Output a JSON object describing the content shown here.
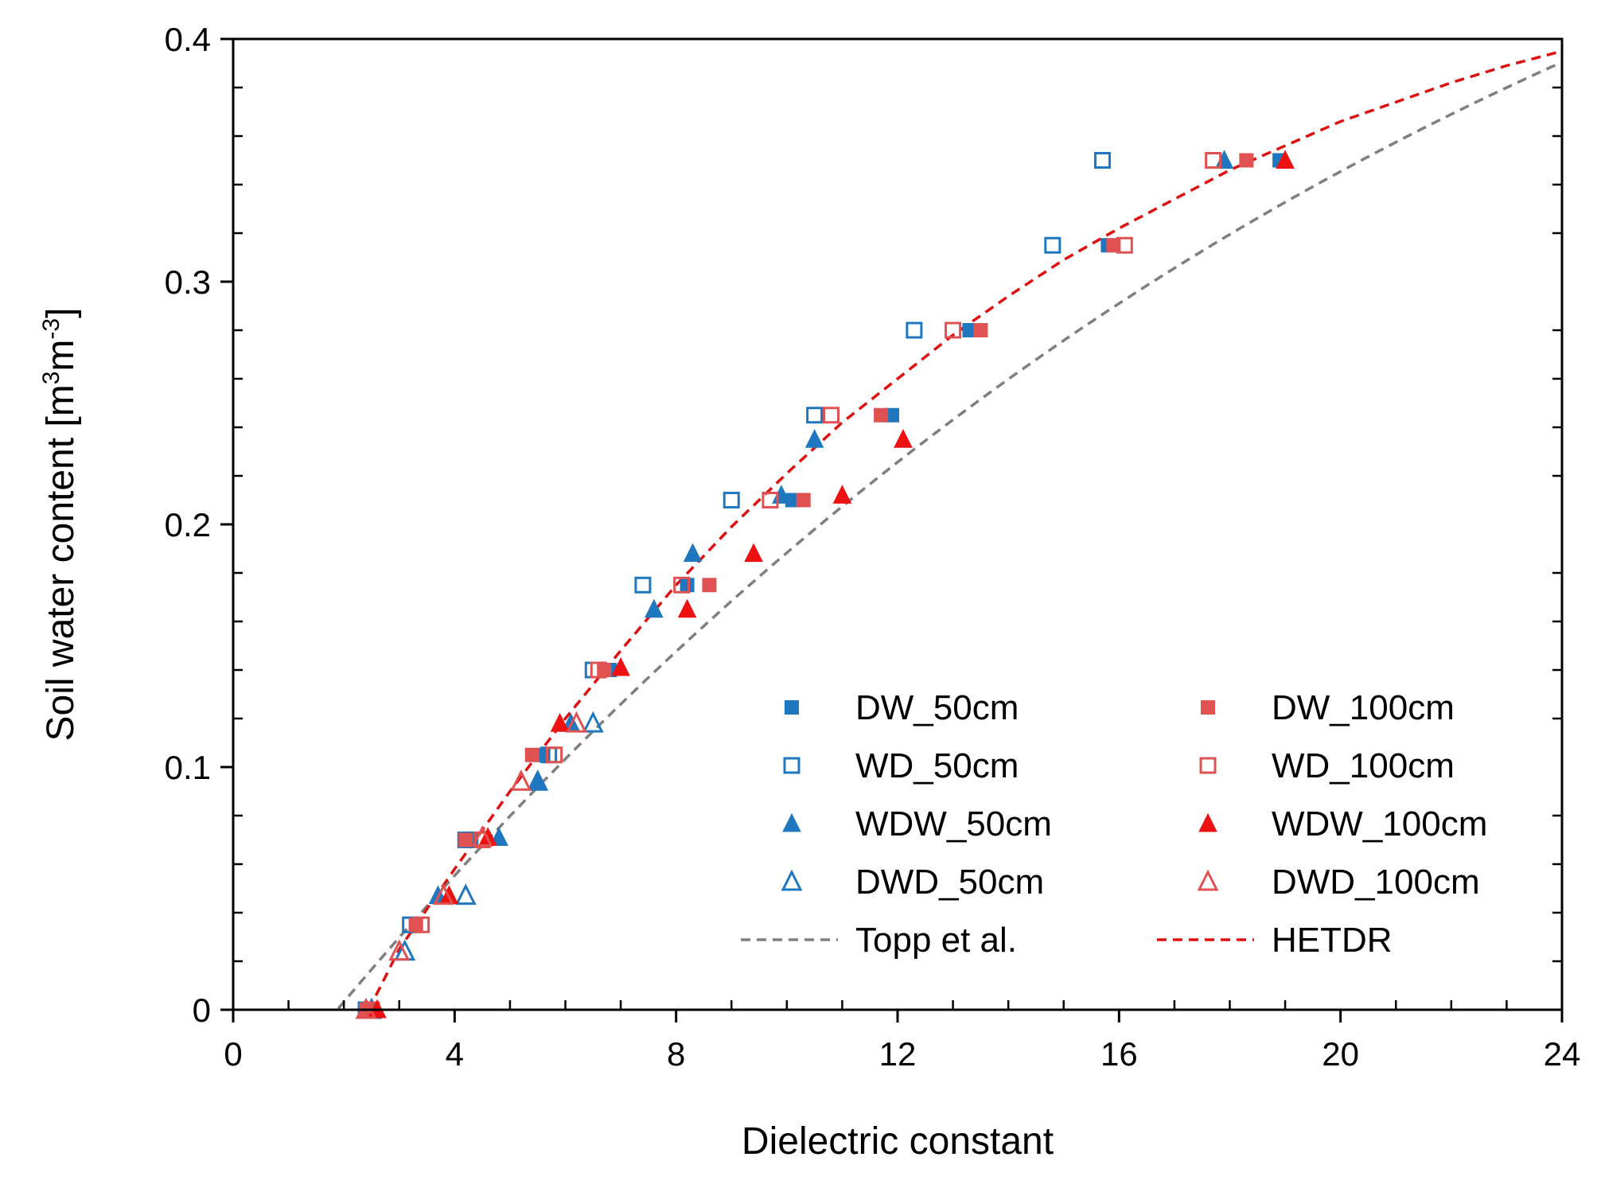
{
  "chart_data": {
    "type": "scatter",
    "title": "",
    "xlabel": "Dielectric constant",
    "ylabel_main": "Soil water content [m",
    "ylabel_sup1": "3",
    "ylabel_mid": "m",
    "ylabel_sup2": "-3",
    "ylabel_end": "]",
    "xlim": [
      0,
      24
    ],
    "ylim": [
      0,
      0.4
    ],
    "xticks": [
      0,
      4,
      8,
      12,
      16,
      20,
      24
    ],
    "xtick_labels": [
      "0",
      "4",
      "8",
      "12",
      "16",
      "20",
      "24"
    ],
    "yticks": [
      0,
      0.1,
      0.2,
      0.3,
      0.4
    ],
    "ytick_labels": [
      "0",
      "0.1",
      "0.2",
      "0.3",
      "0.4"
    ],
    "grid": false,
    "legend_position": "bottom-right",
    "colors": {
      "blue": "#1f77c0",
      "red_light": "#e05252",
      "red": "#ee1111",
      "gray": "#7f7f7f",
      "dark_red": "#dd1111"
    },
    "series": [
      {
        "name": "DW_50cm",
        "marker": "square",
        "filled": true,
        "color": "#1f77c0",
        "points": [
          [
            2.5,
            0.0
          ],
          [
            3.3,
            0.035
          ],
          [
            4.3,
            0.07
          ],
          [
            5.6,
            0.105
          ],
          [
            6.8,
            0.14
          ],
          [
            8.2,
            0.175
          ],
          [
            10.1,
            0.21
          ],
          [
            11.9,
            0.245
          ],
          [
            13.3,
            0.28
          ],
          [
            15.8,
            0.315
          ],
          [
            18.9,
            0.35
          ]
        ]
      },
      {
        "name": "WD_50cm",
        "marker": "square",
        "filled": false,
        "color": "#1f77c0",
        "points": [
          [
            2.4,
            0.0
          ],
          [
            3.2,
            0.035
          ],
          [
            4.2,
            0.07
          ],
          [
            5.7,
            0.105
          ],
          [
            6.5,
            0.14
          ],
          [
            7.4,
            0.175
          ],
          [
            9.0,
            0.21
          ],
          [
            10.5,
            0.245
          ],
          [
            12.3,
            0.28
          ],
          [
            14.8,
            0.315
          ],
          [
            15.7,
            0.35
          ]
        ]
      },
      {
        "name": "WDW_50cm",
        "marker": "triangle",
        "filled": true,
        "color": "#1f77c0",
        "points": [
          [
            2.6,
            0.0
          ],
          [
            3.7,
            0.047
          ],
          [
            4.8,
            0.071
          ],
          [
            5.5,
            0.094
          ],
          [
            6.1,
            0.118
          ],
          [
            7.6,
            0.165
          ],
          [
            8.3,
            0.188
          ],
          [
            9.9,
            0.212
          ],
          [
            10.5,
            0.235
          ],
          [
            17.9,
            0.35
          ]
        ]
      },
      {
        "name": "DWD_50cm",
        "marker": "triangle",
        "filled": false,
        "color": "#1f77c0",
        "points": [
          [
            2.5,
            0.0
          ],
          [
            3.1,
            0.024
          ],
          [
            4.2,
            0.047
          ],
          [
            5.5,
            0.094
          ],
          [
            6.5,
            0.118
          ]
        ]
      },
      {
        "name": "DW_100cm",
        "marker": "square",
        "filled": true,
        "color": "#e05252",
        "points": [
          [
            2.4,
            0.0
          ],
          [
            3.3,
            0.035
          ],
          [
            4.2,
            0.07
          ],
          [
            5.4,
            0.105
          ],
          [
            6.7,
            0.14
          ],
          [
            8.6,
            0.175
          ],
          [
            10.3,
            0.21
          ],
          [
            11.7,
            0.245
          ],
          [
            13.5,
            0.28
          ],
          [
            15.9,
            0.315
          ],
          [
            18.3,
            0.35
          ]
        ]
      },
      {
        "name": "WD_100cm",
        "marker": "square",
        "filled": false,
        "color": "#e05252",
        "points": [
          [
            2.5,
            0.0
          ],
          [
            3.4,
            0.035
          ],
          [
            4.5,
            0.07
          ],
          [
            5.8,
            0.105
          ],
          [
            6.6,
            0.14
          ],
          [
            8.1,
            0.175
          ],
          [
            9.7,
            0.21
          ],
          [
            10.8,
            0.245
          ],
          [
            13.0,
            0.28
          ],
          [
            16.1,
            0.315
          ],
          [
            17.7,
            0.35
          ]
        ]
      },
      {
        "name": "WDW_100cm",
        "marker": "triangle",
        "filled": true,
        "color": "#ee1111",
        "points": [
          [
            2.6,
            0.0
          ],
          [
            3.9,
            0.047
          ],
          [
            4.6,
            0.071
          ],
          [
            5.9,
            0.118
          ],
          [
            7.0,
            0.141
          ],
          [
            8.2,
            0.165
          ],
          [
            9.4,
            0.188
          ],
          [
            11.0,
            0.212
          ],
          [
            12.1,
            0.235
          ],
          [
            19.0,
            0.35
          ]
        ]
      },
      {
        "name": "DWD_100cm",
        "marker": "triangle",
        "filled": false,
        "color": "#e05252",
        "points": [
          [
            2.4,
            0.0
          ],
          [
            3.0,
            0.024
          ],
          [
            3.8,
            0.047
          ],
          [
            4.5,
            0.071
          ],
          [
            5.2,
            0.094
          ],
          [
            6.2,
            0.118
          ]
        ]
      }
    ],
    "curves": [
      {
        "name": "Topp et al.",
        "dashed": true,
        "color": "#7f7f7f",
        "formula": "topp"
      },
      {
        "name": "HETDR",
        "dashed": true,
        "color": "#dd1111",
        "formula": "hetdr"
      }
    ],
    "legend_items": [
      "DW_50cm",
      "WD_50cm",
      "WDW_50cm",
      "DWD_50cm",
      "Topp et al.",
      "DW_100cm",
      "WD_100cm",
      "WDW_100cm",
      "DWD_100cm",
      "HETDR"
    ]
  }
}
